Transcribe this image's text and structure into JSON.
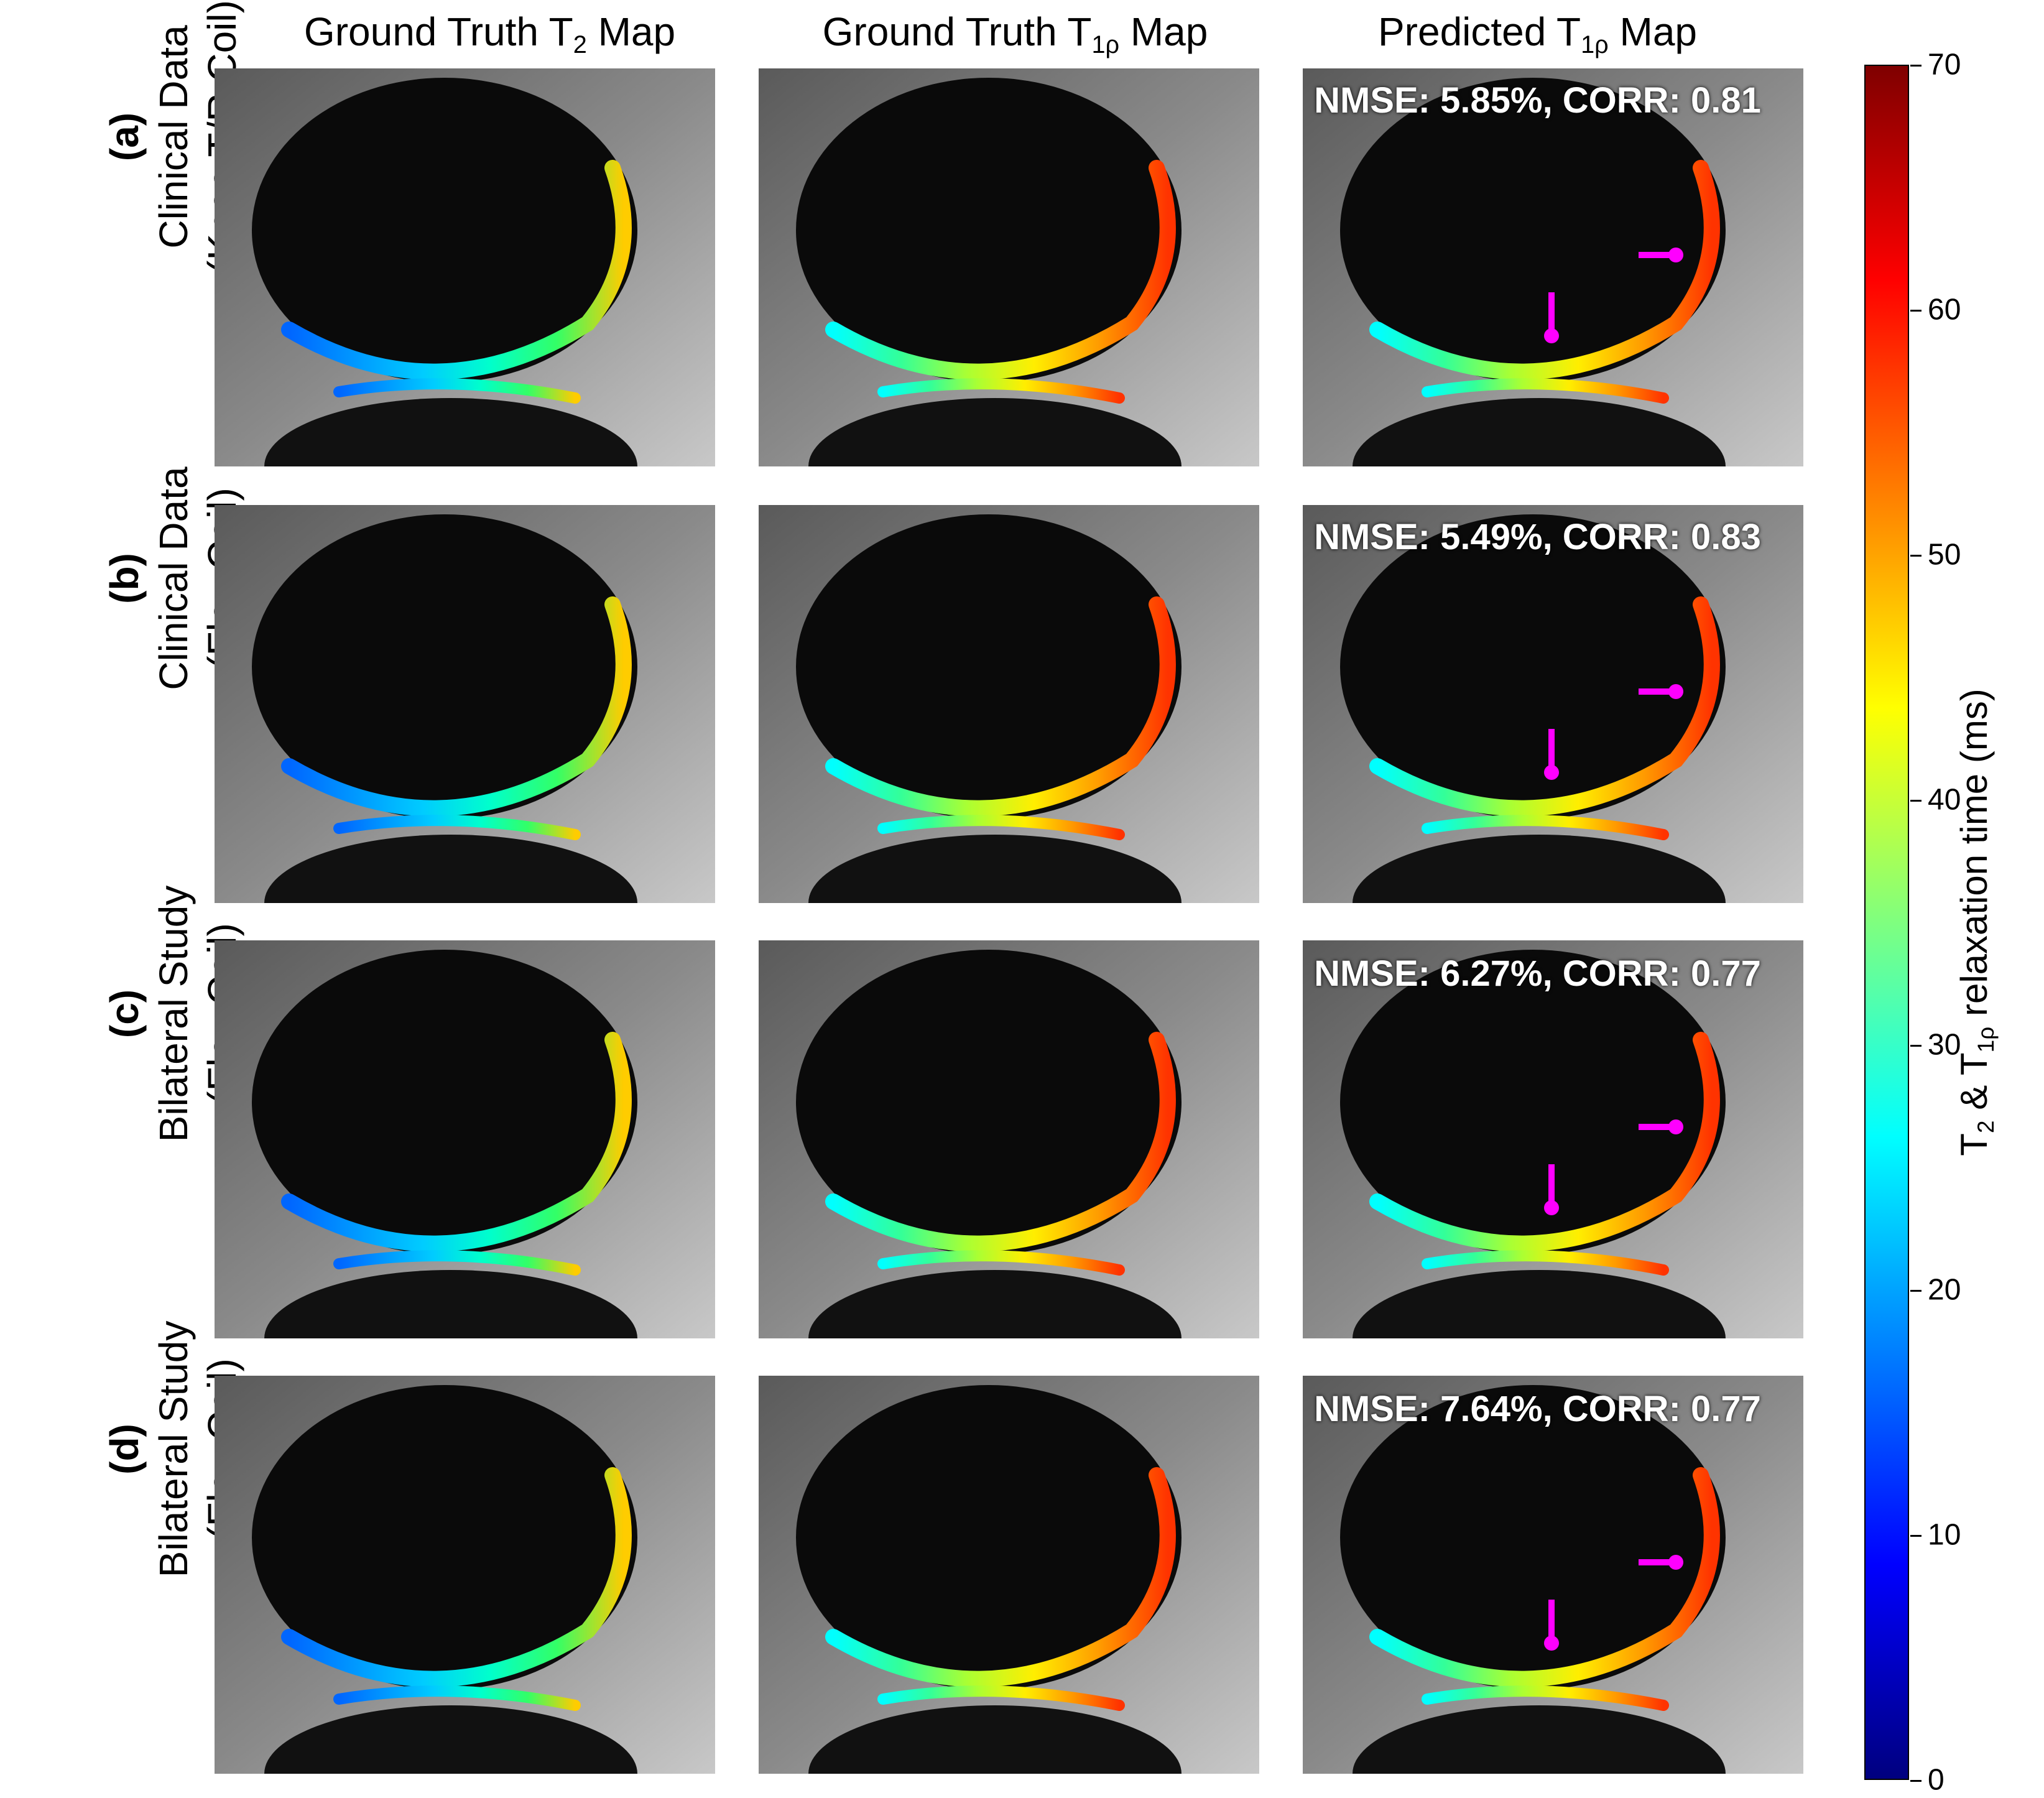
{
  "columns": [
    {
      "pre": "Ground Truth T",
      "sub": "2",
      "post": " Map"
    },
    {
      "pre": "Ground Truth T",
      "sub": "1ρ",
      "post": " Map"
    },
    {
      "pre": "Predicted T",
      "sub": "1ρ",
      "post": " Map"
    }
  ],
  "rows": [
    {
      "letter": "(a)",
      "line1": "Clinical Data",
      "line2": "(Knee T/R Coil)",
      "metric": "NMSE: 5.85%, CORR: 0.81"
    },
    {
      "letter": "(b)",
      "line1": "Clinical Data",
      "line2": "(Flex Coil)",
      "metric": "NMSE: 5.49%, CORR: 0.83"
    },
    {
      "letter": "(c)",
      "line1": "Bilateral Study",
      "line2": "(Flex Coil)",
      "metric": "NMSE: 6.27%, CORR: 0.77"
    },
    {
      "letter": "(d)",
      "line1": "Bilateral Study",
      "line2": "(Flex Coil)",
      "metric": "NMSE: 7.64%, CORR: 0.77"
    }
  ],
  "colorbar": {
    "ticks": [
      "70",
      "60",
      "50",
      "40",
      "30",
      "20",
      "10",
      "0"
    ],
    "label_pre": "T",
    "label_sub1": "2",
    "label_mid": " & T",
    "label_sub2": "1ρ",
    "label_post": " relaxation time (ms)",
    "colors": [
      "#00007f",
      "#0000ff",
      "#007fff",
      "#00ffff",
      "#7fff7f",
      "#ffff00",
      "#ff7f00",
      "#ff0000",
      "#7f0000"
    ]
  },
  "annotation_color": "#ff00ff"
}
